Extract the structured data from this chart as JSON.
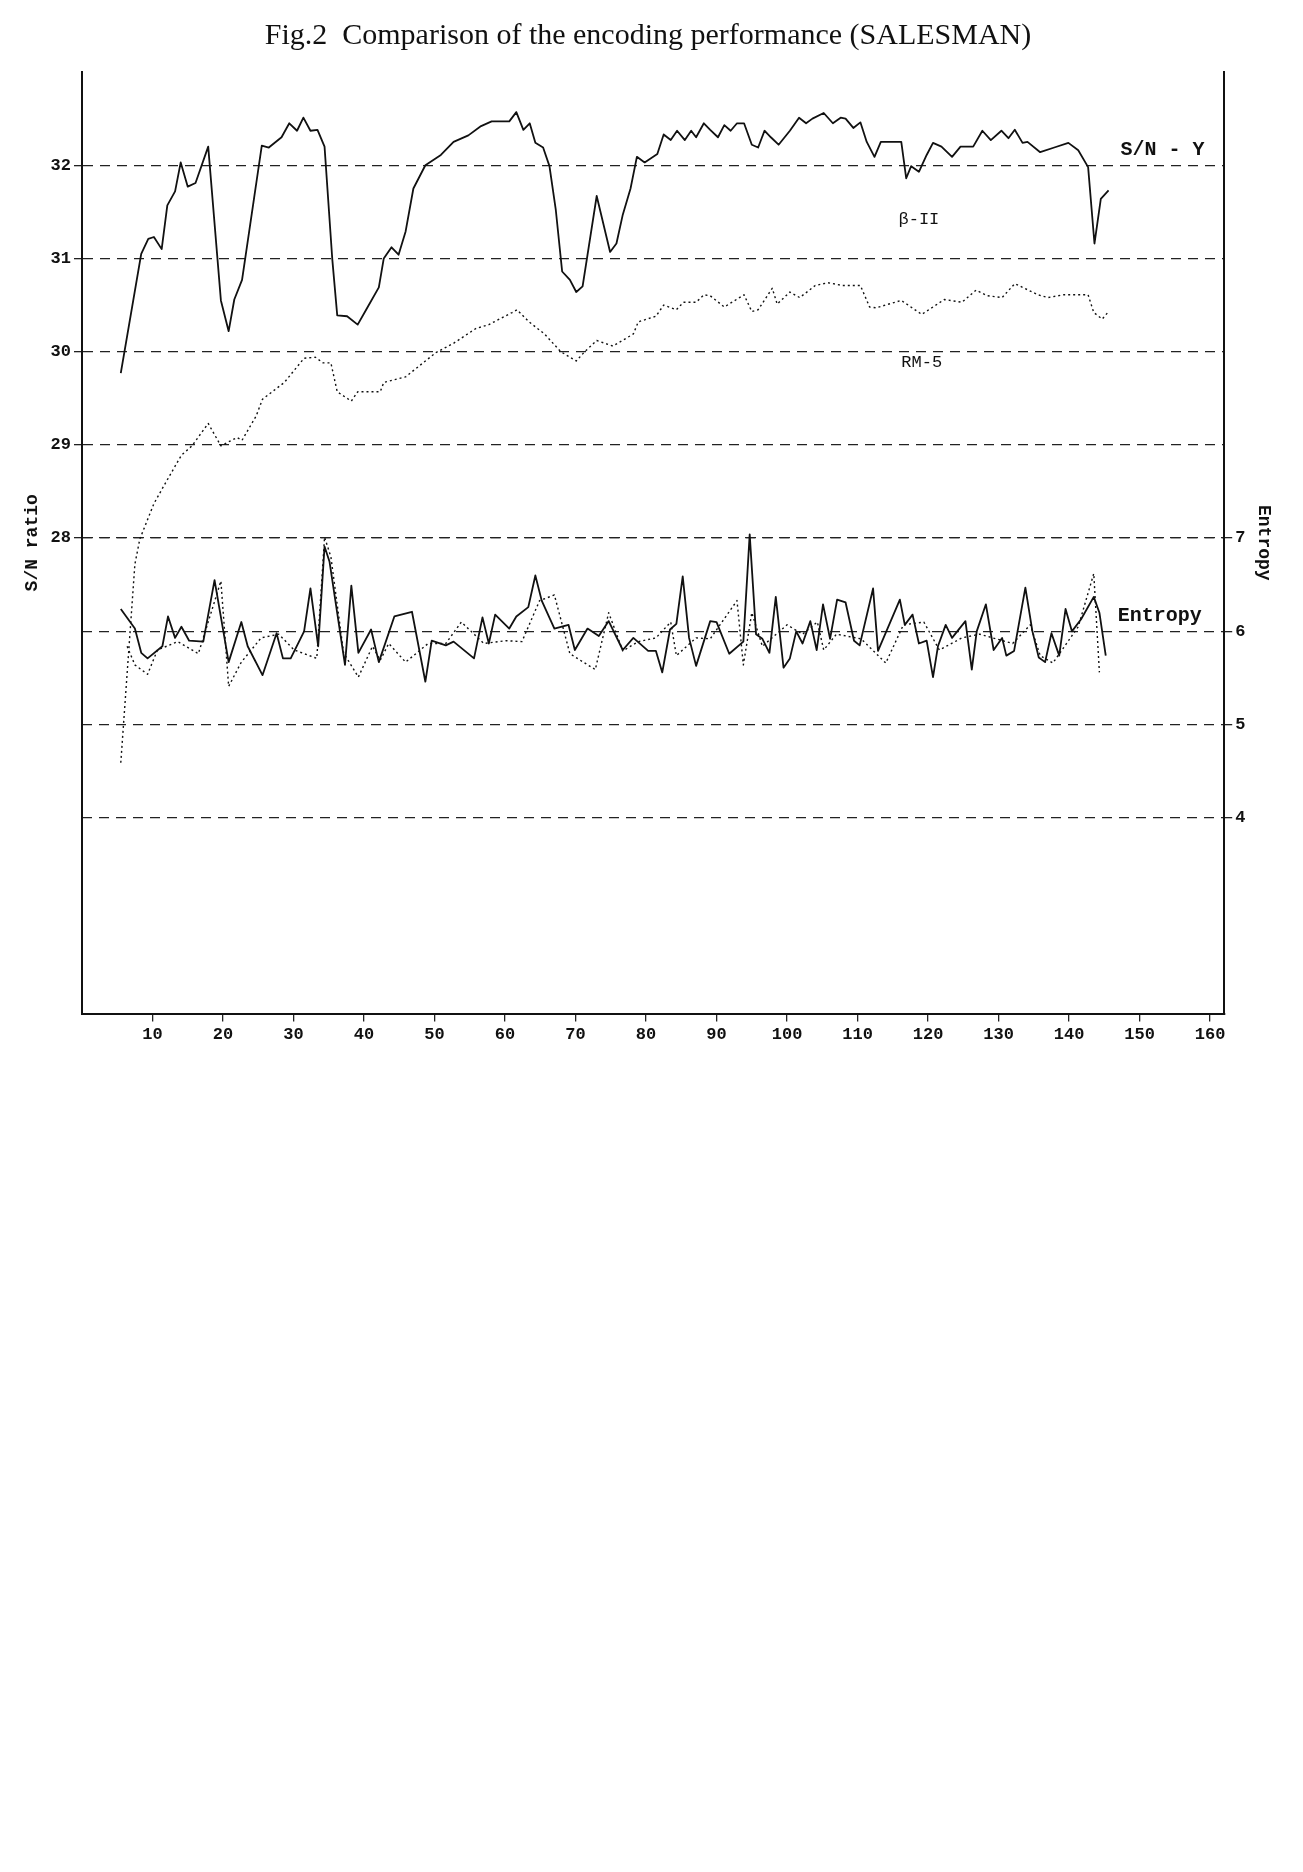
{
  "chart_data": {
    "type": "line",
    "title": "Fig.2  Comparison of the encoding performance (SALESMAN)",
    "xlabel": null,
    "ylabel": "S/N ratio",
    "y2label": "Entropy",
    "xlim": [
      0,
      162
    ],
    "xticks": [
      10,
      20,
      30,
      40,
      50,
      60,
      70,
      80,
      90,
      100,
      110,
      120,
      130,
      140,
      150,
      160
    ],
    "ylim": [
      22.9,
      33.0
    ],
    "yticks": [
      28,
      29,
      30,
      31,
      32
    ],
    "y2lim": [
      1.9,
      12.0
    ],
    "y2ticks": [
      4,
      5,
      6,
      7
    ],
    "grid": "y",
    "legend": false,
    "marker": "none",
    "annotations": [
      "S/N - Y",
      "Entropy"
    ],
    "series": [
      {
        "name": "β-II",
        "color": "#111111",
        "line_style": "solid",
        "x": [
          5.5,
          8.4,
          9.4,
          10.2,
          11.3,
          12.1,
          13.2,
          14.0,
          15.0,
          16.1,
          17.9,
          19.7,
          20.8,
          21.6,
          22.7,
          25.5,
          26.5,
          28.3,
          29.4,
          30.5,
          31.4,
          32.4,
          33.4,
          34.4,
          35.5,
          36.2,
          37.6,
          39.1,
          40.3,
          42.1,
          42.8,
          43.9,
          44.9,
          45.9,
          47.0,
          48.7,
          50.9,
          52.7,
          54.8,
          56.6,
          58.1,
          60.6,
          61.6,
          62.6,
          63.5,
          64.3,
          65.4,
          66.3,
          67.2,
          68.1,
          69.2,
          70.1,
          71.0,
          73.0,
          74.9,
          75.8,
          76.7,
          77.8,
          78.7,
          79.8,
          81.6,
          82.5,
          83.5,
          84.4,
          85.5,
          86.4,
          87.1,
          88.2,
          89.1,
          90.2,
          91.1,
          92.0,
          92.9,
          93.9,
          95.0,
          95.9,
          96.8,
          97.7,
          98.8,
          100.4,
          101.7,
          102.7,
          103.6,
          105.2,
          106.5,
          107.6,
          108.3,
          109.4,
          110.4,
          111.3,
          112.4,
          113.3,
          116.2,
          116.9,
          117.6,
          118.7,
          119.8,
          120.7,
          121.9,
          123.4,
          124.6,
          126.4,
          127.7,
          128.9,
          130.4,
          131.4,
          132.3,
          133.4,
          134.1,
          135.9,
          137.9,
          139.9,
          141.3,
          142.7,
          143.6,
          144.5,
          145.6
        ],
        "values": [
          29.77,
          31.05,
          31.21,
          31.23,
          31.1,
          31.57,
          31.72,
          32.03,
          31.77,
          31.81,
          32.2,
          30.55,
          30.22,
          30.56,
          30.77,
          32.21,
          32.19,
          32.3,
          32.45,
          32.37,
          32.51,
          32.37,
          32.38,
          32.2,
          30.99,
          30.39,
          30.38,
          30.29,
          30.45,
          30.69,
          31.0,
          31.12,
          31.04,
          31.29,
          31.75,
          32.0,
          32.11,
          32.25,
          32.32,
          32.42,
          32.47,
          32.47,
          32.57,
          32.38,
          32.45,
          32.24,
          32.19,
          31.99,
          31.52,
          30.86,
          30.77,
          30.64,
          30.7,
          31.67,
          31.07,
          31.16,
          31.47,
          31.75,
          32.09,
          32.03,
          32.12,
          32.33,
          32.27,
          32.37,
          32.27,
          32.37,
          32.3,
          32.45,
          32.38,
          32.3,
          32.43,
          32.37,
          32.45,
          32.45,
          32.22,
          32.19,
          32.37,
          32.3,
          32.22,
          32.37,
          32.51,
          32.45,
          32.5,
          32.56,
          32.45,
          32.51,
          32.5,
          32.4,
          32.46,
          32.25,
          32.09,
          32.25,
          32.25,
          31.86,
          31.99,
          31.93,
          32.11,
          32.24,
          32.2,
          32.09,
          32.2,
          32.2,
          32.37,
          32.27,
          32.37,
          32.29,
          32.38,
          32.24,
          32.25,
          32.14,
          32.19,
          32.24,
          32.16,
          31.98,
          31.16,
          31.64,
          31.73
        ]
      },
      {
        "name": "RM-5",
        "color": "#111111",
        "line_style": "dotted",
        "x": [
          5.5,
          7.5,
          8.2,
          10.2,
          11.6,
          14.1,
          15.6,
          17.9,
          19.7,
          22.0,
          22.7,
          24.7,
          25.6,
          28.7,
          31.5,
          33.1,
          34.2,
          35.3,
          36.2,
          38.2,
          39.1,
          42.3,
          42.8,
          45.9,
          50.2,
          52.7,
          55.9,
          57.7,
          61.0,
          61.7,
          63.4,
          65.6,
          67.9,
          70.1,
          71.3,
          73.0,
          75.3,
          78.2,
          78.9,
          81.4,
          82.5,
          84.3,
          85.3,
          87.1,
          88.2,
          89.1,
          91.1,
          93.9,
          95.0,
          95.9,
          97.9,
          98.6,
          100.4,
          101.8,
          104.0,
          105.8,
          107.9,
          110.4,
          111.7,
          112.6,
          116.2,
          119.1,
          122.3,
          124.8,
          126.8,
          128.4,
          130.5,
          132.3,
          135.6,
          137.0,
          139.2,
          142.7,
          143.5,
          144.7,
          145.6
        ],
        "values": [
          25.59,
          27.72,
          27.99,
          28.37,
          28.56,
          28.89,
          28.99,
          29.23,
          28.99,
          29.08,
          29.05,
          29.31,
          29.49,
          29.67,
          29.93,
          29.94,
          29.88,
          29.88,
          29.57,
          29.47,
          29.57,
          29.57,
          29.67,
          29.73,
          29.99,
          30.09,
          30.25,
          30.29,
          30.42,
          30.45,
          30.32,
          30.19,
          30.0,
          29.9,
          30.0,
          30.12,
          30.06,
          30.19,
          30.32,
          30.38,
          30.5,
          30.45,
          30.53,
          30.53,
          30.61,
          30.6,
          30.48,
          30.61,
          30.43,
          30.45,
          30.68,
          30.51,
          30.64,
          30.58,
          30.71,
          30.74,
          30.71,
          30.71,
          30.48,
          30.47,
          30.55,
          30.4,
          30.56,
          30.53,
          30.66,
          30.6,
          30.58,
          30.73,
          30.61,
          30.58,
          30.61,
          30.61,
          30.42,
          30.35,
          30.43
        ]
      },
      {
        "color": "#111111",
        "line_style": "solid",
        "axis": "y2",
        "x": [
          5.5,
          7.5,
          8.4,
          9.3,
          11.4,
          12.2,
          13.2,
          14.1,
          15.2,
          17.2,
          18.8,
          20.8,
          22.6,
          23.5,
          25.6,
          27.6,
          28.5,
          29.6,
          31.5,
          32.4,
          33.5,
          34.4,
          35.1,
          37.3,
          38.2,
          39.2,
          41.0,
          42.1,
          44.3,
          46.8,
          48.7,
          49.6,
          51.6,
          52.7,
          55.6,
          56.8,
          57.7,
          58.6,
          60.6,
          61.6,
          63.3,
          64.3,
          65.2,
          67.0,
          69.0,
          69.9,
          71.7,
          73.3,
          74.7,
          76.7,
          78.2,
          80.3,
          81.4,
          82.3,
          83.4,
          84.3,
          85.2,
          86.1,
          87.1,
          89.1,
          90.0,
          91.8,
          93.8,
          94.7,
          95.6,
          96.5,
          97.5,
          98.4,
          99.5,
          100.4,
          101.3,
          102.2,
          103.3,
          104.2,
          105.1,
          106.1,
          107.1,
          108.3,
          109.5,
          110.3,
          112.2,
          112.9,
          116.0,
          116.7,
          117.8,
          118.7,
          119.8,
          120.7,
          121.4,
          122.5,
          123.4,
          125.3,
          126.2,
          126.9,
          128.2,
          129.3,
          130.5,
          131.1,
          132.2,
          133.8,
          134.8,
          135.7,
          136.6,
          137.5,
          138.6,
          139.5,
          140.4,
          141.7,
          143.5,
          144.3,
          145.2
        ],
        "values": [
          6.24,
          6.03,
          5.77,
          5.71,
          5.84,
          6.16,
          5.93,
          6.05,
          5.9,
          5.89,
          6.55,
          5.67,
          6.1,
          5.84,
          5.53,
          5.98,
          5.71,
          5.71,
          6.0,
          6.46,
          5.84,
          6.91,
          6.75,
          5.64,
          6.49,
          5.77,
          6.02,
          5.67,
          6.16,
          6.21,
          5.46,
          5.9,
          5.85,
          5.89,
          5.71,
          6.15,
          5.87,
          6.18,
          6.03,
          6.16,
          6.26,
          6.6,
          6.33,
          6.03,
          6.07,
          5.8,
          6.03,
          5.95,
          6.11,
          5.8,
          5.93,
          5.79,
          5.79,
          5.56,
          6.02,
          6.08,
          6.59,
          5.93,
          5.63,
          6.11,
          6.1,
          5.76,
          5.89,
          7.04,
          5.97,
          5.92,
          5.77,
          6.37,
          5.61,
          5.71,
          6.0,
          5.87,
          6.11,
          5.8,
          6.29,
          5.92,
          6.34,
          6.31,
          5.9,
          5.85,
          6.46,
          5.79,
          6.34,
          6.07,
          6.18,
          5.87,
          5.9,
          5.51,
          5.84,
          6.07,
          5.93,
          6.11,
          5.59,
          6.0,
          6.29,
          5.8,
          5.93,
          5.74,
          5.79,
          6.47,
          6.0,
          5.72,
          5.67,
          5.98,
          5.74,
          6.24,
          6.0,
          6.13,
          6.37,
          6.2,
          5.74
        ]
      },
      {
        "color": "#111111",
        "line_style": "dotted",
        "axis": "y2",
        "x": [
          6.4,
          7.5,
          9.3,
          10.7,
          13.6,
          16.5,
          19.7,
          20.8,
          22.6,
          25.4,
          27.9,
          30.1,
          33.3,
          34.4,
          35.3,
          37.1,
          39.2,
          41.2,
          42.3,
          43.5,
          45.9,
          49.1,
          51.6,
          53.8,
          57.0,
          60.2,
          62.4,
          64.9,
          67.0,
          69.2,
          72.8,
          74.7,
          76.7,
          78.9,
          81.4,
          83.5,
          84.3,
          87.1,
          89.1,
          92.9,
          93.8,
          95.0,
          96.5,
          100.0,
          102.2,
          104.3,
          105.2,
          107.0,
          110.5,
          114.0,
          116.5,
          119.4,
          121.6,
          124.8,
          127.3,
          132.0,
          134.5,
          135.9,
          137.7,
          141.3,
          143.5,
          144.3
        ],
        "values": [
          5.84,
          5.64,
          5.54,
          5.8,
          5.89,
          5.76,
          6.54,
          5.41,
          5.67,
          5.93,
          5.97,
          5.8,
          5.71,
          7.01,
          6.8,
          5.77,
          5.51,
          5.84,
          5.69,
          5.87,
          5.67,
          5.87,
          5.87,
          6.1,
          5.87,
          5.9,
          5.89,
          6.33,
          6.39,
          5.76,
          5.59,
          6.2,
          5.79,
          5.89,
          5.93,
          6.1,
          5.74,
          5.93,
          5.92,
          6.33,
          5.64,
          6.2,
          5.84,
          6.07,
          5.97,
          6.1,
          5.8,
          5.97,
          5.92,
          5.66,
          6.07,
          6.1,
          5.8,
          5.93,
          5.97,
          5.87,
          6.07,
          5.74,
          5.66,
          6.05,
          6.62,
          5.56
        ]
      }
    ]
  }
}
